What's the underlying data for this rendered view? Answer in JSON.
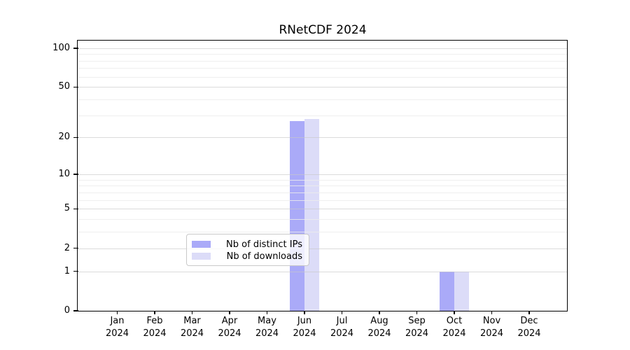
{
  "title": "RNetCDF 2024",
  "legend": {
    "items": [
      {
        "label": "Nb of distinct IPs",
        "color": "#aaaaf8"
      },
      {
        "label": "Nb of downloads",
        "color": "#dcdcf8"
      }
    ]
  },
  "chart_data": {
    "type": "bar",
    "title": "RNetCDF 2024",
    "categories": [
      "Jan 2024",
      "Feb 2024",
      "Mar 2024",
      "Apr 2024",
      "May 2024",
      "Jun 2024",
      "Jul 2024",
      "Aug 2024",
      "Sep 2024",
      "Oct 2024",
      "Nov 2024",
      "Dec 2024"
    ],
    "series": [
      {
        "name": "Nb of distinct IPs",
        "color": "#aaaaf8",
        "values": [
          0,
          0,
          0,
          0,
          0,
          27,
          0,
          0,
          0,
          1,
          0,
          0
        ]
      },
      {
        "name": "Nb of downloads",
        "color": "#dcdcf8",
        "values": [
          0,
          0,
          0,
          0,
          0,
          28,
          0,
          0,
          0,
          1,
          0,
          0
        ]
      }
    ],
    "xlabel": "",
    "ylabel": "",
    "yscale": "log1p",
    "yticks": [
      0,
      1,
      2,
      5,
      10,
      20,
      50,
      100
    ],
    "minor_yticks": [
      3,
      4,
      6,
      7,
      8,
      9,
      30,
      40,
      60,
      70,
      80,
      90
    ],
    "ylim": [
      0,
      113
    ],
    "grid": "horizontal",
    "legend_position": "bottom-center"
  },
  "colors": {
    "major_grid": "#c8c8c8",
    "minor_grid": "#ececec",
    "spine": "#000000",
    "background": "#ffffff"
  }
}
